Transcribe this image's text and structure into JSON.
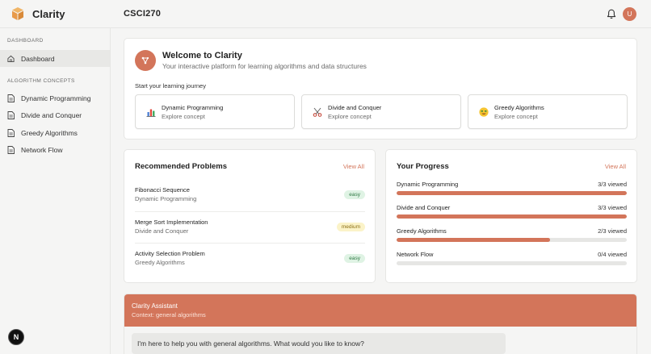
{
  "brand": {
    "name": "Clarity"
  },
  "header": {
    "course": "CSCI270",
    "avatar_initial": "U"
  },
  "colors": {
    "accent": "#d3755a",
    "easy_bg": "#dff3e4",
    "medium_bg": "#fbf3c8"
  },
  "sidebar": {
    "sections": [
      "DASHBOARD",
      "ALGORITHM CONCEPTS"
    ],
    "dashboard": {
      "label": "Dashboard",
      "icon": "home-icon"
    },
    "concepts": [
      {
        "label": "Dynamic Programming",
        "icon": "document-icon"
      },
      {
        "label": "Divide and Conquer",
        "icon": "document-icon"
      },
      {
        "label": "Greedy Algorithms",
        "icon": "document-icon"
      },
      {
        "label": "Network Flow",
        "icon": "document-icon"
      }
    ]
  },
  "welcome": {
    "title": "Welcome to Clarity",
    "subtitle": "Your interactive platform for learning algorithms and data structures",
    "start_label": "Start your learning journey",
    "concepts": [
      {
        "title": "Dynamic Programming",
        "sub": "Explore concept",
        "icon": "bar-chart-icon"
      },
      {
        "title": "Divide and Conquer",
        "sub": "Explore concept",
        "icon": "scissors-icon"
      },
      {
        "title": "Greedy Algorithms",
        "sub": "Explore concept",
        "icon": "greedy-face-icon"
      }
    ]
  },
  "recommended": {
    "title": "Recommended Problems",
    "view_all": "View All",
    "problems": [
      {
        "title": "Fibonacci Sequence",
        "category": "Dynamic Programming",
        "difficulty": "easy"
      },
      {
        "title": "Merge Sort Implementation",
        "category": "Divide and Conquer",
        "difficulty": "medium"
      },
      {
        "title": "Activity Selection Problem",
        "category": "Greedy Algorithms",
        "difficulty": "easy"
      }
    ]
  },
  "progress": {
    "title": "Your Progress",
    "view_all": "View All",
    "items": [
      {
        "name": "Dynamic Programming",
        "count": "3/3 viewed",
        "fraction": 1.0
      },
      {
        "name": "Divide and Conquer",
        "count": "3/3 viewed",
        "fraction": 1.0
      },
      {
        "name": "Greedy Algorithms",
        "count": "2/3 viewed",
        "fraction": 0.667
      },
      {
        "name": "Network Flow",
        "count": "0/4 viewed",
        "fraction": 0.0
      }
    ]
  },
  "assistant": {
    "title": "Clarity Assistant",
    "context": "Context: general algorithms",
    "message": "I'm here to help you with general algorithms. What would you like to know?"
  },
  "dev_badge": "N"
}
